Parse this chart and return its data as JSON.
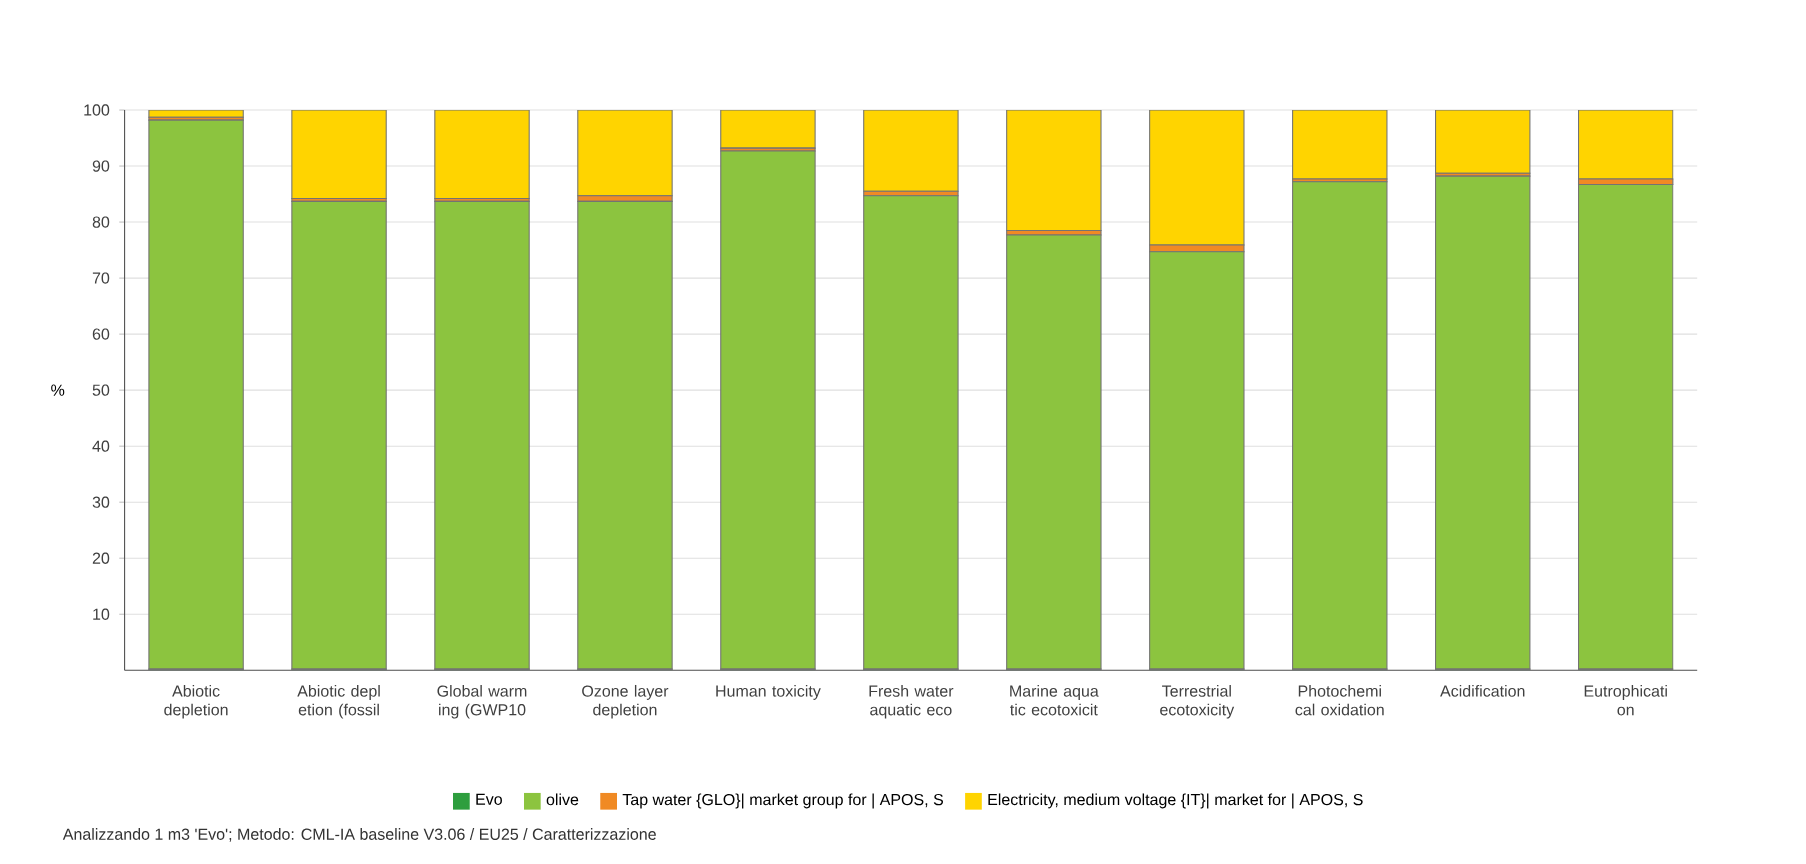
{
  "chart_data": {
    "type": "bar",
    "stacked": true,
    "ylabel": "%",
    "categories": [
      "Abiotic depletion",
      "Abiotic depl etion (fossil",
      "Global warm ing (GWP10",
      "Ozone layer depletion",
      "Human toxicity",
      "Fresh water aquatic eco",
      "Marine aqua tic ecotoxicit",
      "Terrestrial ecotoxicity",
      "Photochemi cal oxidation",
      "Acidification",
      "Eutrophicati on"
    ],
    "series": [
      {
        "name": "Evo",
        "color": "#2e9e3e",
        "values": [
          0.2,
          0.2,
          0.2,
          0.2,
          0.2,
          0.2,
          0.2,
          0.2,
          0.2,
          0.2,
          0.2
        ]
      },
      {
        "name": "olive",
        "color": "#8cc43f",
        "values": [
          98,
          83.5,
          83.5,
          83.5,
          92.5,
          84.5,
          77.5,
          74.5,
          87,
          88,
          86.5
        ]
      },
      {
        "name": "Tap water {GLO}| market group for | APOS, S",
        "color": "#f08a24",
        "values": [
          0.5,
          0.5,
          0.5,
          1,
          0.5,
          0.8,
          0.8,
          1.2,
          0.5,
          0.5,
          1
        ]
      },
      {
        "name": "Electricity, medium voltage {IT}| market for | APOS, S",
        "color": "#ffd400",
        "values": [
          1.3,
          15.8,
          15.8,
          15.3,
          6.8,
          14.5,
          21.5,
          24.1,
          12.3,
          11.3,
          12.3
        ]
      }
    ],
    "ylim": [
      0,
      100
    ],
    "yticks": [
      10,
      20,
      30,
      40,
      50,
      60,
      70,
      80,
      90,
      100
    ],
    "grid": "y",
    "legend": "bottom",
    "annotations": [
      "Analizzando 1 m3 'Evo'; Metodo: CML-IA baseline V3.06 / EU25 / Caratterizzazione"
    ]
  }
}
